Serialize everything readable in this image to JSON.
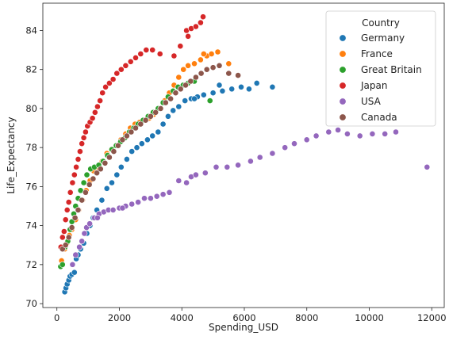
{
  "chart_data": {
    "type": "scatter",
    "title": "",
    "xlabel": "Spending_USD",
    "ylabel": "Life_Expectancy",
    "xlim": [
      -450,
      12400
    ],
    "ylim": [
      69.8,
      85.4
    ],
    "xticks": [
      0,
      2000,
      4000,
      6000,
      8000,
      10000,
      12000
    ],
    "yticks": [
      70,
      72,
      74,
      76,
      78,
      80,
      82,
      84
    ],
    "xtick_labels": [
      "0",
      "2000",
      "4000",
      "6000",
      "8000",
      "10000",
      "12000"
    ],
    "ytick_labels": [
      "70",
      "72",
      "74",
      "76",
      "78",
      "80",
      "82",
      "84"
    ],
    "grid": false,
    "legend": {
      "title": "Country",
      "placement": "top-right"
    },
    "series": [
      {
        "name": "Germany",
        "color": "#1f77b4",
        "points": [
          [
            250,
            70.6
          ],
          [
            290,
            70.8
          ],
          [
            330,
            71.0
          ],
          [
            380,
            71.2
          ],
          [
            420,
            71.4
          ],
          [
            480,
            71.5
          ],
          [
            560,
            71.6
          ],
          [
            620,
            72.3
          ],
          [
            680,
            72.5
          ],
          [
            760,
            72.8
          ],
          [
            860,
            73.1
          ],
          [
            960,
            73.6
          ],
          [
            1060,
            74.0
          ],
          [
            1160,
            74.4
          ],
          [
            1280,
            74.8
          ],
          [
            1440,
            75.3
          ],
          [
            1600,
            75.9
          ],
          [
            1760,
            76.2
          ],
          [
            1920,
            76.6
          ],
          [
            2060,
            77.0
          ],
          [
            2240,
            77.4
          ],
          [
            2400,
            77.8
          ],
          [
            2560,
            78.0
          ],
          [
            2720,
            78.2
          ],
          [
            2900,
            78.4
          ],
          [
            3060,
            78.6
          ],
          [
            3240,
            78.8
          ],
          [
            3400,
            79.2
          ],
          [
            3560,
            79.6
          ],
          [
            3720,
            79.9
          ],
          [
            3900,
            80.1
          ],
          [
            4100,
            80.4
          ],
          [
            4300,
            80.5
          ],
          [
            4500,
            80.6
          ],
          [
            4700,
            80.7
          ],
          [
            5000,
            80.8
          ],
          [
            5300,
            80.9
          ],
          [
            5600,
            81.0
          ],
          [
            5900,
            81.1
          ],
          [
            6150,
            81.0
          ],
          [
            6400,
            81.3
          ],
          [
            6900,
            81.1
          ],
          [
            5200,
            81.2
          ],
          [
            4400,
            80.5
          ]
        ]
      },
      {
        "name": "France",
        "color": "#ff7f0e",
        "points": [
          [
            150,
            72.2
          ],
          [
            250,
            72.8
          ],
          [
            320,
            73.1
          ],
          [
            400,
            73.5
          ],
          [
            480,
            73.8
          ],
          [
            600,
            74.3
          ],
          [
            700,
            74.8
          ],
          [
            820,
            75.3
          ],
          [
            940,
            75.8
          ],
          [
            1060,
            76.3
          ],
          [
            1180,
            76.8
          ],
          [
            1300,
            77.0
          ],
          [
            1450,
            77.3
          ],
          [
            1600,
            77.7
          ],
          [
            1750,
            77.9
          ],
          [
            1900,
            78.1
          ],
          [
            2050,
            78.4
          ],
          [
            2200,
            78.7
          ],
          [
            2350,
            79.0
          ],
          [
            2500,
            79.2
          ],
          [
            2650,
            79.3
          ],
          [
            2800,
            79.4
          ],
          [
            2950,
            79.5
          ],
          [
            3100,
            79.7
          ],
          [
            3300,
            80.0
          ],
          [
            3450,
            80.4
          ],
          [
            3600,
            80.8
          ],
          [
            3750,
            81.2
          ],
          [
            3900,
            81.6
          ],
          [
            4050,
            82.0
          ],
          [
            4200,
            82.2
          ],
          [
            4400,
            82.3
          ],
          [
            4600,
            82.5
          ],
          [
            4800,
            82.7
          ],
          [
            4950,
            82.8
          ],
          [
            5150,
            82.9
          ],
          [
            5500,
            82.3
          ],
          [
            4700,
            82.8
          ]
        ]
      },
      {
        "name": "Great Britain",
        "color": "#2ca02c",
        "points": [
          [
            120,
            71.9
          ],
          [
            180,
            72.0
          ],
          [
            260,
            72.9
          ],
          [
            350,
            73.2
          ],
          [
            420,
            73.8
          ],
          [
            480,
            74.2
          ],
          [
            540,
            74.6
          ],
          [
            600,
            75.0
          ],
          [
            680,
            75.4
          ],
          [
            760,
            75.8
          ],
          [
            860,
            76.2
          ],
          [
            960,
            76.6
          ],
          [
            1080,
            76.9
          ],
          [
            1200,
            77.0
          ],
          [
            1340,
            77.1
          ],
          [
            1480,
            77.3
          ],
          [
            1620,
            77.6
          ],
          [
            1760,
            77.9
          ],
          [
            1900,
            78.1
          ],
          [
            2040,
            78.3
          ],
          [
            2180,
            78.5
          ],
          [
            2320,
            78.8
          ],
          [
            2460,
            79.0
          ],
          [
            2600,
            79.2
          ],
          [
            2760,
            79.4
          ],
          [
            2920,
            79.6
          ],
          [
            3080,
            79.8
          ],
          [
            3240,
            80.0
          ],
          [
            3400,
            80.3
          ],
          [
            3560,
            80.6
          ],
          [
            3720,
            80.9
          ],
          [
            3880,
            81.1
          ],
          [
            4040,
            81.2
          ],
          [
            4200,
            81.3
          ],
          [
            4400,
            81.4
          ],
          [
            4900,
            80.4
          ]
        ]
      },
      {
        "name": "Japan",
        "color": "#d62728",
        "points": [
          [
            130,
            72.9
          ],
          [
            180,
            73.4
          ],
          [
            230,
            73.7
          ],
          [
            280,
            74.3
          ],
          [
            330,
            74.8
          ],
          [
            380,
            75.2
          ],
          [
            430,
            75.7
          ],
          [
            500,
            76.2
          ],
          [
            560,
            76.6
          ],
          [
            620,
            77.0
          ],
          [
            680,
            77.4
          ],
          [
            740,
            77.8
          ],
          [
            800,
            78.2
          ],
          [
            860,
            78.5
          ],
          [
            920,
            78.8
          ],
          [
            980,
            79.1
          ],
          [
            1060,
            79.3
          ],
          [
            1140,
            79.5
          ],
          [
            1220,
            79.8
          ],
          [
            1300,
            80.1
          ],
          [
            1380,
            80.4
          ],
          [
            1460,
            80.8
          ],
          [
            1560,
            81.1
          ],
          [
            1680,
            81.3
          ],
          [
            1800,
            81.5
          ],
          [
            1920,
            81.8
          ],
          [
            2060,
            82.0
          ],
          [
            2200,
            82.2
          ],
          [
            2360,
            82.4
          ],
          [
            2520,
            82.6
          ],
          [
            2680,
            82.8
          ],
          [
            2860,
            83.0
          ],
          [
            3060,
            83.0
          ],
          [
            3300,
            82.8
          ],
          [
            3750,
            82.7
          ],
          [
            3950,
            83.2
          ],
          [
            4150,
            84.0
          ],
          [
            4300,
            84.1
          ],
          [
            4450,
            84.2
          ],
          [
            4600,
            84.4
          ],
          [
            4680,
            84.7
          ],
          [
            4200,
            83.7
          ]
        ]
      },
      {
        "name": "USA",
        "color": "#9467bd",
        "points": [
          [
            500,
            72.0
          ],
          [
            600,
            72.5
          ],
          [
            720,
            72.9
          ],
          [
            800,
            73.2
          ],
          [
            880,
            73.6
          ],
          [
            950,
            73.9
          ],
          [
            1050,
            74.1
          ],
          [
            1200,
            74.4
          ],
          [
            1350,
            74.6
          ],
          [
            1500,
            74.7
          ],
          [
            1650,
            74.8
          ],
          [
            1800,
            74.8
          ],
          [
            2000,
            74.9
          ],
          [
            2200,
            75.0
          ],
          [
            2400,
            75.1
          ],
          [
            2600,
            75.2
          ],
          [
            2800,
            75.4
          ],
          [
            3000,
            75.4
          ],
          [
            3200,
            75.5
          ],
          [
            3400,
            75.6
          ],
          [
            3600,
            75.7
          ],
          [
            3900,
            76.3
          ],
          [
            4150,
            76.2
          ],
          [
            4300,
            76.5
          ],
          [
            4450,
            76.6
          ],
          [
            4750,
            76.7
          ],
          [
            5100,
            77.0
          ],
          [
            5450,
            77.0
          ],
          [
            5800,
            77.1
          ],
          [
            6200,
            77.3
          ],
          [
            6500,
            77.5
          ],
          [
            6900,
            77.7
          ],
          [
            7300,
            78.0
          ],
          [
            7600,
            78.2
          ],
          [
            8000,
            78.4
          ],
          [
            8300,
            78.6
          ],
          [
            8700,
            78.8
          ],
          [
            9000,
            78.9
          ],
          [
            9300,
            78.7
          ],
          [
            9700,
            78.6
          ],
          [
            10100,
            78.7
          ],
          [
            10500,
            78.7
          ],
          [
            10850,
            78.8
          ],
          [
            11850,
            77.0
          ],
          [
            1300,
            74.4
          ],
          [
            2100,
            74.9
          ]
        ]
      },
      {
        "name": "Canada",
        "color": "#8c564b",
        "points": [
          [
            180,
            72.8
          ],
          [
            280,
            73.0
          ],
          [
            380,
            73.4
          ],
          [
            480,
            73.9
          ],
          [
            580,
            74.4
          ],
          [
            680,
            74.8
          ],
          [
            800,
            75.3
          ],
          [
            920,
            75.7
          ],
          [
            1040,
            76.1
          ],
          [
            1160,
            76.4
          ],
          [
            1280,
            76.7
          ],
          [
            1400,
            76.9
          ],
          [
            1540,
            77.2
          ],
          [
            1680,
            77.5
          ],
          [
            1820,
            77.8
          ],
          [
            1960,
            78.1
          ],
          [
            2100,
            78.4
          ],
          [
            2240,
            78.6
          ],
          [
            2380,
            78.8
          ],
          [
            2520,
            79.0
          ],
          [
            2680,
            79.2
          ],
          [
            2840,
            79.4
          ],
          [
            3000,
            79.6
          ],
          [
            3160,
            79.8
          ],
          [
            3320,
            80.0
          ],
          [
            3480,
            80.3
          ],
          [
            3640,
            80.5
          ],
          [
            3800,
            80.8
          ],
          [
            3960,
            81.0
          ],
          [
            4120,
            81.2
          ],
          [
            4280,
            81.4
          ],
          [
            4450,
            81.6
          ],
          [
            4620,
            81.8
          ],
          [
            4800,
            82.0
          ],
          [
            5000,
            82.1
          ],
          [
            5200,
            82.2
          ],
          [
            5500,
            81.8
          ],
          [
            5800,
            81.7
          ]
        ]
      }
    ]
  }
}
